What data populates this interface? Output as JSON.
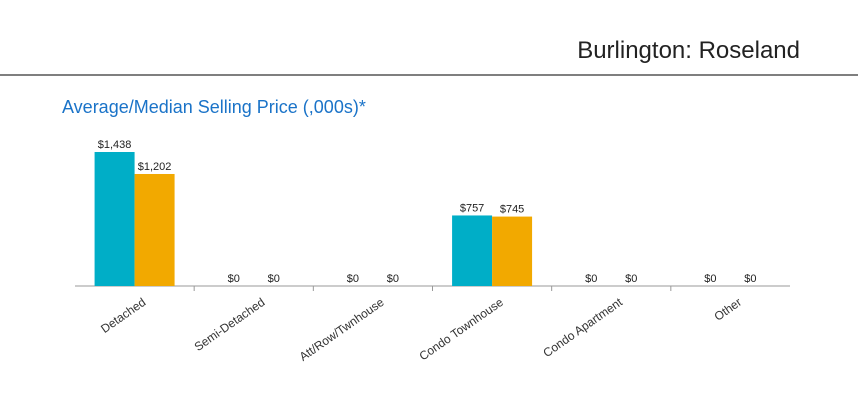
{
  "header": {
    "title": "Burlington: Roseland"
  },
  "chart_data": {
    "type": "bar",
    "title": "Average/Median Selling Price (,000s)*",
    "categories": [
      "Detached",
      "Semi-Detached",
      "Att/Row/Twnhouse",
      "Condo Townhouse",
      "Condo Apartment",
      "Other"
    ],
    "series": [
      {
        "color": "#00aec7",
        "values": [
          1438,
          0,
          0,
          757,
          0,
          0
        ],
        "value_labels": [
          "$1,438",
          "$0",
          "$0",
          "$757",
          "$0",
          "$0"
        ]
      },
      {
        "color": "#f2a900",
        "values": [
          1202,
          0,
          0,
          745,
          0,
          0
        ],
        "value_labels": [
          "$1,202",
          "$0",
          "$0",
          "$745",
          "$0",
          "$0"
        ]
      }
    ]
  }
}
